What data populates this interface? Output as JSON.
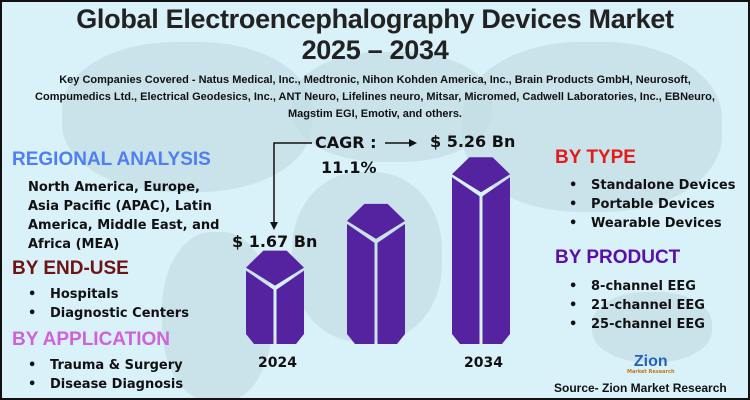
{
  "title_line1": "Global Electroencephalography Devices Market",
  "title_line2": "2025 – 2034",
  "companies": "Key Companies Covered - Natus Medical, Inc., Medtronic, Nihon Kohden America, Inc., Brain Products GmbH, Neurosoft, Compumedics Ltd., Electrical Geodesics, Inc., ANT Neuro, Lifelines neuro, Mitsar, Micromed, Cadwell Laboratories, Inc., EBNeuro, Magstim EGI, Emotiv, and others.",
  "regional": {
    "heading": "REGIONAL ANALYSIS",
    "text": "North America, Europe, Asia Pacific (APAC), Latin America, Middle East, and Africa (MEA)",
    "color": "#4f7ff2"
  },
  "end_use": {
    "heading": "BY END-USE",
    "items": [
      "Hospitals",
      "Diagnostic Centers"
    ],
    "color": "#6e1414"
  },
  "application": {
    "heading": "BY APPLICATION",
    "items": [
      "Trauma & Surgery",
      "Disease Diagnosis"
    ],
    "color": "#cf62dc"
  },
  "type": {
    "heading": "BY TYPE",
    "items": [
      "Standalone Devices",
      "Portable Devices",
      "Wearable Devices"
    ],
    "color": "#e31b1b"
  },
  "product": {
    "heading": "BY PRODUCT",
    "items": [
      "8-channel EEG",
      "21-channel EEG",
      "25-channel EEG"
    ],
    "color": "#5a0fa8"
  },
  "cagr": {
    "label": "CAGR :",
    "value": "11.1%"
  },
  "chart_data": {
    "type": "bar",
    "categories": [
      "2024",
      "2034"
    ],
    "values": [
      1.67,
      5.26
    ],
    "value_labels": [
      "$ 1.67 Bn",
      "$ 5.26 Bn"
    ],
    "unit": "Bn USD",
    "bar_color": "#5523a0"
  },
  "source": "Source- Zion Market Research",
  "logo": {
    "name": "Zion",
    "sub": "Market Research"
  }
}
